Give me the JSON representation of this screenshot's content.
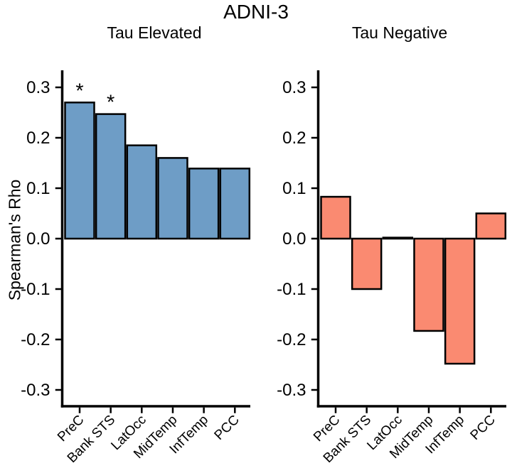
{
  "figure": {
    "title": "ADNI-3",
    "ylabel": "Spearman's Rho"
  },
  "colors": {
    "tau_elevated_bar": "#6e9dc6",
    "tau_negative_bar": "#fa8a71",
    "outline": "#000000",
    "background": "#ffffff"
  },
  "chart_data": [
    {
      "type": "bar",
      "title": "Tau Elevated",
      "categories": [
        "PreC",
        "Bank STS",
        "LatOcc",
        "MidTemp",
        "InfTemp",
        "PCC"
      ],
      "values": [
        0.27,
        0.247,
        0.185,
        0.16,
        0.139,
        0.139
      ],
      "sig_markers": [
        "*",
        "*",
        "",
        "",
        "",
        ""
      ],
      "bar_color": "#6e9dc6",
      "xlabel": "",
      "ylabel": "Spearman's Rho",
      "ylim": [
        -0.33,
        0.33
      ],
      "ytick_labels": [
        "0.3",
        "0.2",
        "0.1",
        "0.0",
        "-0.1",
        "-0.2",
        "-0.3"
      ],
      "grid": false,
      "legend": "none"
    },
    {
      "type": "bar",
      "title": "Tau Negative",
      "categories": [
        "PreC",
        "Bank STS",
        "LatOcc",
        "MidTemp",
        "InfTemp",
        "PCC"
      ],
      "values": [
        0.083,
        -0.1,
        0.002,
        -0.183,
        -0.248,
        0.05
      ],
      "sig_markers": [
        "",
        "",
        "",
        "",
        "",
        ""
      ],
      "bar_color": "#fa8a71",
      "xlabel": "",
      "ylabel": "",
      "ylim": [
        -0.33,
        0.33
      ],
      "ytick_labels": [
        "0.3",
        "0.2",
        "0.1",
        "0.0",
        "-0.1",
        "-0.2",
        "-0.3"
      ],
      "grid": false,
      "legend": "none"
    }
  ]
}
